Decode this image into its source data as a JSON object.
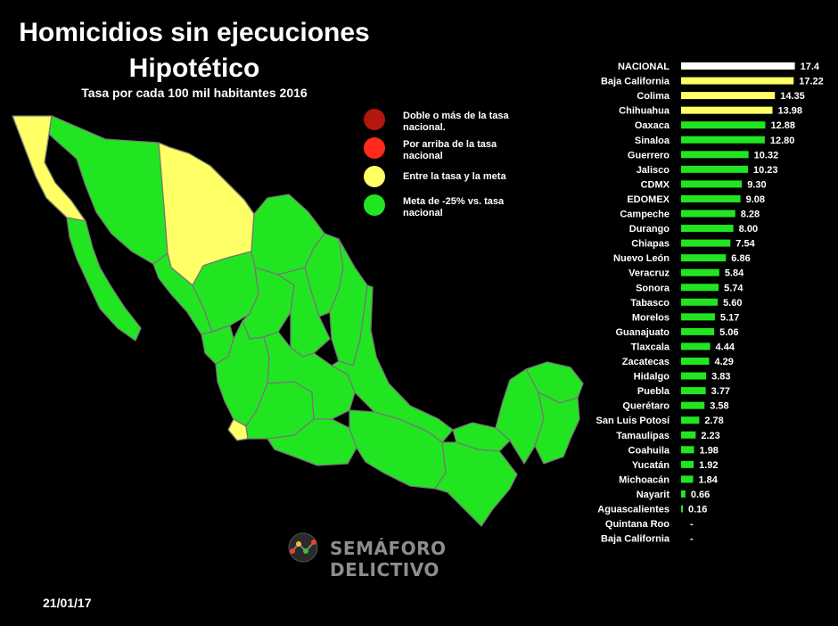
{
  "header": {
    "title": "Homicidios sin ejecuciones",
    "subtitle": "Hipotético",
    "caption": "Tasa por cada 100 mil habitantes  2016"
  },
  "legend": {
    "items": [
      {
        "label": "Doble o más de la tasa nacional.",
        "color": "#b3170e"
      },
      {
        "label": "Por arriba de la tasa nacional",
        "color": "#ff2a1a"
      },
      {
        "label": "Entre la tasa y la meta",
        "color": "#ffff66"
      },
      {
        "label": "Meta de -25% vs. tasa nacional",
        "color": "#22e522"
      }
    ]
  },
  "colors": {
    "national": "#ffffff",
    "between": "#ffff66",
    "goal": "#22e522",
    "border": "#777777",
    "brand_logo_red": "#e8442e",
    "brand_logo_yellow": "#f2c12e",
    "brand_logo_green": "#3fbf3f"
  },
  "chart_data": {
    "type": "bar",
    "orientation": "horizontal",
    "categories": [
      "NACIONAL",
      "Baja California",
      "Colima",
      "Chihuahua",
      "Oaxaca",
      "Sinaloa",
      "Guerrero",
      "Jalisco",
      "CDMX",
      "EDOMEX",
      "Campeche",
      "Durango",
      "Chiapas",
      "Nuevo León",
      "Veracruz",
      "Sonora",
      "Tabasco",
      "Morelos",
      "Guanajuato",
      "Tlaxcala",
      "Zacatecas",
      "Hidalgo",
      "Puebla",
      "Querétaro",
      "San Luis Potosí",
      "Tamaulipas",
      "Coahuila",
      "Yucatán",
      "Michoacán",
      "Nayarit",
      "Aguascalientes",
      "Quintana Roo",
      "Baja California"
    ],
    "values": [
      17.4,
      17.22,
      14.35,
      13.98,
      12.88,
      12.8,
      10.32,
      10.23,
      9.3,
      9.08,
      8.28,
      8.0,
      7.54,
      6.86,
      5.84,
      5.74,
      5.6,
      5.17,
      5.06,
      4.44,
      4.29,
      3.83,
      3.77,
      3.58,
      2.78,
      2.23,
      1.98,
      1.92,
      1.84,
      0.66,
      0.16,
      null,
      null
    ],
    "value_labels": [
      "17.4",
      "17.22",
      "14.35",
      "13.98",
      "12.88",
      "12.80",
      "10.32",
      "10.23",
      "9.30",
      "9.08",
      "8.28",
      "8.00",
      "7.54",
      "6.86",
      "5.84",
      "5.74",
      "5.60",
      "5.17",
      "5.06",
      "4.44",
      "4.29",
      "3.83",
      "3.77",
      "3.58",
      "2.78",
      "2.23",
      "1.98",
      "1.92",
      "1.84",
      "0.66",
      "0.16",
      "-",
      "-"
    ],
    "bar_colors": [
      "#ffffff",
      "#ffff66",
      "#ffff66",
      "#ffff66",
      "#22e522",
      "#22e522",
      "#22e522",
      "#22e522",
      "#22e522",
      "#22e522",
      "#22e522",
      "#22e522",
      "#22e522",
      "#22e522",
      "#22e522",
      "#22e522",
      "#22e522",
      "#22e522",
      "#22e522",
      "#22e522",
      "#22e522",
      "#22e522",
      "#22e522",
      "#22e522",
      "#22e522",
      "#22e522",
      "#22e522",
      "#22e522",
      "#22e522",
      "#22e522",
      "#22e522",
      "#22e522",
      "#22e522"
    ],
    "xlim": [
      0,
      18
    ],
    "grid": false,
    "legend": "top-center"
  },
  "map": {
    "state_colors": {
      "baja_california": "#ffff66",
      "baja_california_sur": "#22e522",
      "sonora": "#22e522",
      "chihuahua": "#ffff66",
      "coahuila": "#22e522",
      "nuevo_leon": "#22e522",
      "tamaulipas": "#22e522",
      "sinaloa": "#22e522",
      "durango": "#22e522",
      "zacatecas": "#22e522",
      "san_luis_potosi": "#22e522",
      "nayarit": "#22e522",
      "jalisco": "#22e522",
      "colima": "#ffff66",
      "michoacan": "#22e522",
      "guerrero": "#22e522",
      "oaxaca": "#22e522",
      "centro": "#22e522",
      "veracruz": "#22e522",
      "chiapas": "#22e522",
      "tabasco": "#22e522",
      "campeche": "#22e522",
      "yucatan": "#22e522",
      "quintana_roo": "#22e522"
    }
  },
  "footer": {
    "brand": "SEMÁFORO DELICTIVO",
    "date": "21/01/17"
  }
}
